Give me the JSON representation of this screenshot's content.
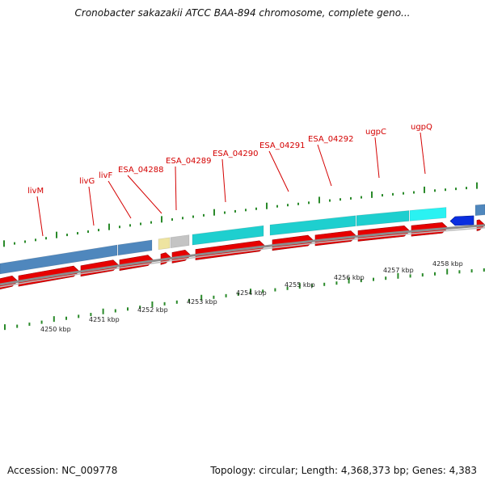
{
  "title": "Cronobacter sakazakii ATCC BAA-894 chromosome, complete geno...",
  "footer": {
    "accession": "Accession: NC_009778",
    "summary": "Topology: circular; Length: 4,368,373 bp; Genes: 4,383"
  },
  "colors": {
    "feature_label": "#d40000",
    "gene_arrow": "#e60000",
    "cds_blue": "#4f87bd",
    "cds_cyan": "#1ecfcf",
    "cds_yellow": "#eee4a0",
    "cds_gray": "#c4c4c4",
    "reverse_gene": "#0a2ee0",
    "backbone": "#8c8c8c",
    "tick_green": "#2a8a2a"
  },
  "genes": [
    {
      "name": "livM"
    },
    {
      "name": "livG"
    },
    {
      "name": "livF"
    },
    {
      "name": "ESA_04288"
    },
    {
      "name": "ESA_04289"
    },
    {
      "name": "ESA_04290"
    },
    {
      "name": "ESA_04291"
    },
    {
      "name": "ESA_04292"
    },
    {
      "name": "ugpC"
    },
    {
      "name": "ugpQ"
    }
  ],
  "scale": {
    "unit": "kbp",
    "labels": [
      "4250 kbp",
      "4251 kbp",
      "4252 kbp",
      "4253 kbp",
      "4254 kbp",
      "4255 kbp",
      "4256 kbp",
      "4257 kbp",
      "4258 kbp"
    ]
  }
}
